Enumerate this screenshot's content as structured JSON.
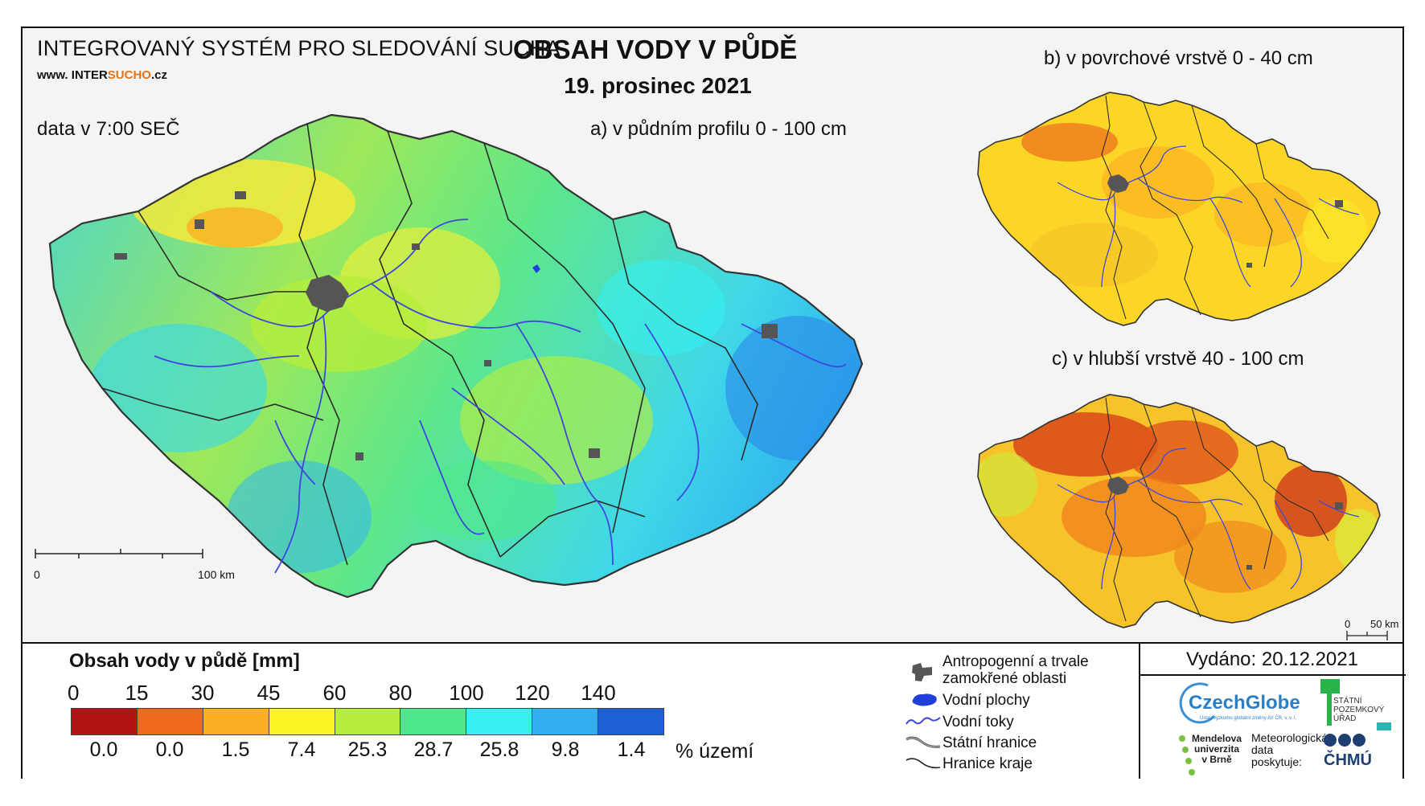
{
  "header": {
    "system_name": "INTEGROVANÝ SYSTÉM PRO SLEDOVÁNÍ SUCHA",
    "website_prefix": "www. INTER",
    "website_brand": "SUCHO",
    "website_suffix": ".cz",
    "data_time": "data v 7:00 SEČ",
    "title": "OBSAH VODY V PŮDĚ",
    "date": "19. prosinec 2021"
  },
  "maps": {
    "main_label": "a) v půdním profilu 0 - 100 cm",
    "surface_label": "b) v povrchové vrstvě 0 - 40 cm",
    "deep_label": "c) v hlubší vrstvě 40 - 100 cm",
    "main_scale": {
      "start": "0",
      "end": "100 km"
    },
    "small_scale": {
      "start": "0",
      "end": "50 km"
    }
  },
  "legend": {
    "title": "Obsah vody v půdě  [mm]",
    "ticks": [
      "0",
      "15",
      "30",
      "45",
      "60",
      "80",
      "100",
      "120",
      "140"
    ],
    "classes": [
      {
        "color": "#b01414",
        "percent": "0.0"
      },
      {
        "color": "#ef6a1d",
        "percent": "0.0"
      },
      {
        "color": "#fbb024",
        "percent": "1.5"
      },
      {
        "color": "#fbf224",
        "percent": "7.4"
      },
      {
        "color": "#b5ee3c",
        "percent": "25.3"
      },
      {
        "color": "#4ee88a",
        "percent": "28.7"
      },
      {
        "color": "#36f0f2",
        "percent": "25.8"
      },
      {
        "color": "#32aef2",
        "percent": "9.8"
      },
      {
        "color": "#1e5fd4",
        "percent": "1.4"
      }
    ],
    "percent_unit": "% území"
  },
  "symbols": [
    {
      "icon": "urban-area-icon",
      "label": "Antropogenní a trvale zamokřené oblasti"
    },
    {
      "icon": "water-body-icon",
      "label": "Vodní plochy"
    },
    {
      "icon": "river-icon",
      "label": "Vodní toky"
    },
    {
      "icon": "state-border-icon",
      "label": "Státní hranice"
    },
    {
      "icon": "region-border-icon",
      "label": "Hranice kraje"
    }
  ],
  "issued": "Vydáno: 20.12.2021",
  "logos": {
    "czechglobe": "CzechGlobe",
    "czechglobe_sub": "Ústav výzkumu globální změny AV ČR, v. v. i.",
    "spu": [
      "STÁTNÍ",
      "POZEMKOVÝ",
      "ÚŘAD"
    ],
    "mendel": [
      "Mendelova",
      "univerzita",
      "v Brně"
    ],
    "met_data": [
      "Meteorologická",
      "data",
      "poskytuje:"
    ],
    "chmu": "ČHMÚ"
  },
  "colors": {
    "river": "#3f47e0",
    "urban": "#555555",
    "border": "#222222"
  }
}
